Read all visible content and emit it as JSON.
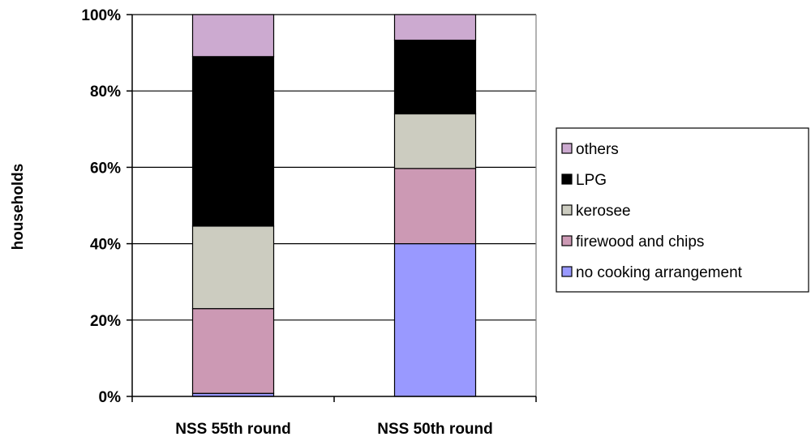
{
  "chart_data": {
    "type": "bar",
    "stacked": true,
    "normalized": true,
    "title": "",
    "xlabel": "",
    "ylabel": "households",
    "ylim": [
      0,
      100
    ],
    "yticks": [
      "0%",
      "20%",
      "40%",
      "60%",
      "80%",
      "100%"
    ],
    "grid": true,
    "legend_position": "right",
    "categories": [
      "NSS 55th round",
      "NSS 50th round"
    ],
    "series": [
      {
        "name": "no cooking arrangement",
        "color": "#9999ff",
        "values": [
          0.8,
          40
        ]
      },
      {
        "name": "firewood and chips",
        "color": "#cc99b4",
        "values": [
          22.2,
          19.7
        ]
      },
      {
        "name": "kerosee",
        "color": "#ccccc0",
        "values": [
          21.6,
          14.3
        ]
      },
      {
        "name": "LPG",
        "color": "#000000",
        "values": [
          44.4,
          19.3
        ]
      },
      {
        "name": "others",
        "color": "#ccaad0",
        "values": [
          11,
          6.7
        ]
      }
    ]
  }
}
